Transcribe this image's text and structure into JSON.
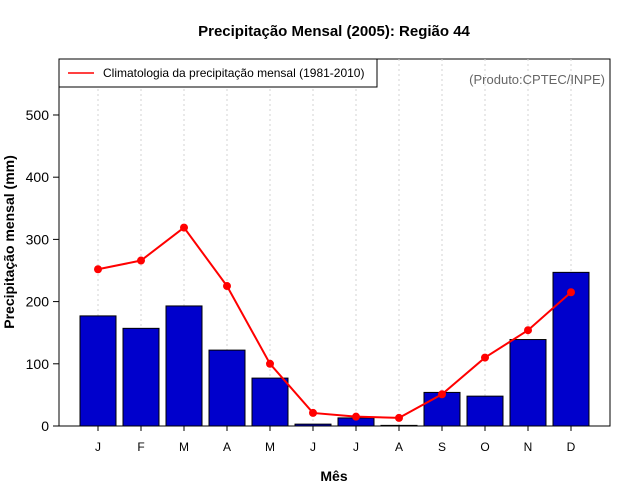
{
  "chart_data": {
    "type": "bar",
    "title": "Precipitação Mensal (2005): Região 44",
    "xlabel": "Mês",
    "ylabel": "Precipitação mensal (mm)",
    "credit": "(Produto:CPTEC/INPE)",
    "categories": [
      "J",
      "F",
      "M",
      "A",
      "M",
      "J",
      "J",
      "A",
      "S",
      "O",
      "N",
      "D"
    ],
    "ylim": [
      0,
      590
    ],
    "yticks": [
      0,
      100,
      200,
      300,
      400,
      500
    ],
    "grid": "vertical dotted",
    "legend_position": "top-left",
    "series": [
      {
        "name": "Precipitação mensal (2005)",
        "kind": "bar",
        "color": "#0000cc",
        "values": [
          177,
          157,
          193,
          122,
          77,
          3,
          13,
          1,
          54,
          48,
          139,
          247
        ]
      },
      {
        "name": "Climatologia da precipitação mensal (1981-2010)",
        "kind": "line",
        "color": "#ff0000",
        "values": [
          252,
          266,
          319,
          225,
          100,
          21,
          15,
          13,
          51,
          110,
          154,
          215
        ]
      }
    ]
  }
}
